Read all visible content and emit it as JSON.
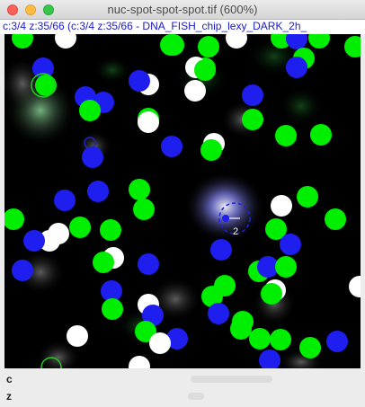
{
  "window": {
    "title": "nuc-spot-spot-spot.tif (600%)"
  },
  "info_bar": {
    "text": "c:3/4 z:35/66 (c:3/4 z:35/66 - DNA_FISH_chip_lexy_DARK_2h_"
  },
  "overlay": {
    "selected_label": "2"
  },
  "colors": {
    "green": "#00ee00",
    "white": "#ffffff",
    "blue": "#1e1eee",
    "selection": "#1e1eee"
  },
  "sliders": {
    "channel_label": "c",
    "z_label": "z"
  }
}
